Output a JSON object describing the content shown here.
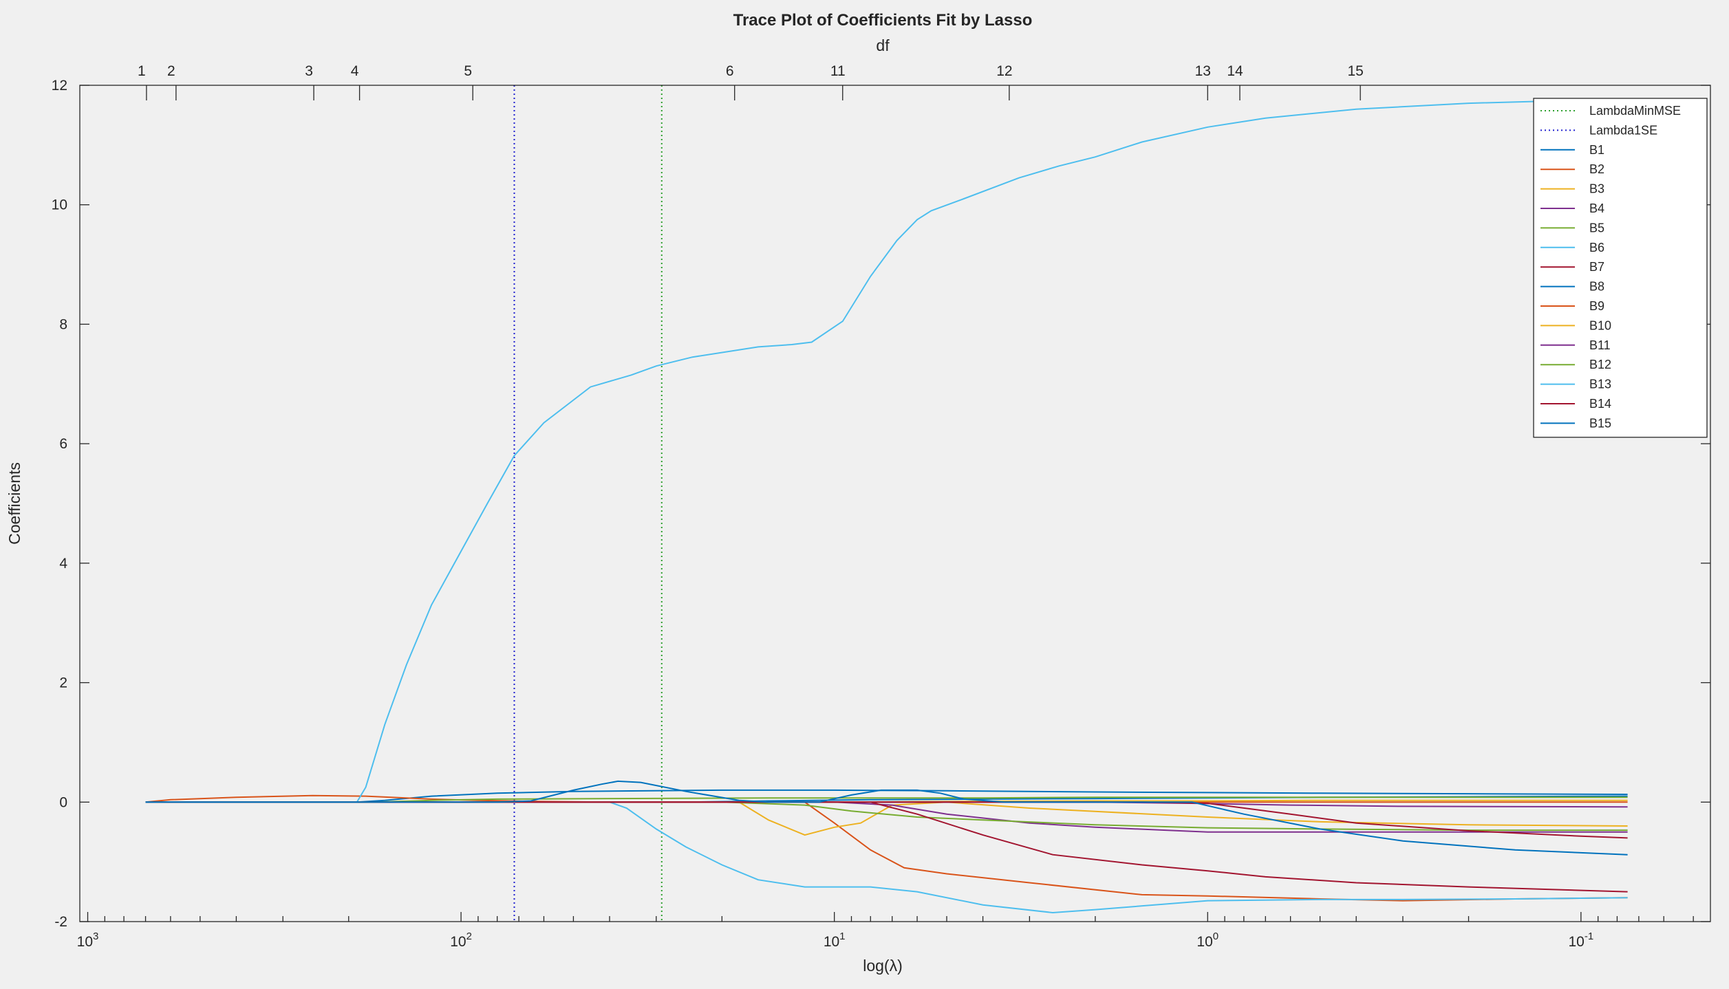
{
  "chart_data": {
    "type": "line",
    "title": "Trace Plot of Coefficients Fit by Lasso",
    "top_axis_label": "df",
    "xlabel": "log(λ)",
    "ylabel": "Coefficients",
    "x_scale": "log",
    "x_direction": "reversed",
    "xlim": [
      1050,
      0.045
    ],
    "ylim": [
      -2,
      12
    ],
    "y_ticks": [
      -2,
      0,
      2,
      4,
      6,
      8,
      10,
      12
    ],
    "x_ticks": [
      {
        "value": 1000,
        "base": "10",
        "exp": "3"
      },
      {
        "value": 100,
        "base": "10",
        "exp": "2"
      },
      {
        "value": 10,
        "base": "10",
        "exp": "1"
      },
      {
        "value": 1,
        "base": "10",
        "exp": "0"
      },
      {
        "value": 0.1,
        "base": "10",
        "exp": "-1"
      }
    ],
    "df_ticks": [
      {
        "x": 696,
        "label": "1"
      },
      {
        "x": 580,
        "label": "2"
      },
      {
        "x": 248,
        "label": "3"
      },
      {
        "x": 187,
        "label": "4"
      },
      {
        "x": 93,
        "label": "5"
      },
      {
        "x": 18.5,
        "label": "6"
      },
      {
        "x": 9.5,
        "label": "11"
      },
      {
        "x": 3.4,
        "label": "12"
      },
      {
        "x": 1.0,
        "label": "13"
      },
      {
        "x": 0.82,
        "label": "14"
      },
      {
        "x": 0.39,
        "label": "15"
      }
    ],
    "vlines": [
      {
        "name": "LambdaMinMSE",
        "x": 29,
        "color": "#2ca02c"
      },
      {
        "name": "Lambda1SE",
        "x": 72,
        "color": "#1f1fd0"
      }
    ],
    "legend_position": "top-right",
    "series": [
      {
        "name": "B1",
        "color": "#0072BD",
        "points": [
          [
            700,
            0
          ],
          [
            200,
            0
          ],
          [
            100,
            0
          ],
          [
            60,
            0
          ],
          [
            40,
            0
          ],
          [
            25,
            0
          ],
          [
            15,
            0.02
          ],
          [
            8,
            0.04
          ],
          [
            4,
            0.05
          ],
          [
            2,
            0.06
          ],
          [
            1,
            0.07
          ],
          [
            0.5,
            0.08
          ],
          [
            0.2,
            0.09
          ],
          [
            0.075,
            0.1
          ]
        ]
      },
      {
        "name": "B2",
        "color": "#D95319",
        "points": [
          [
            700,
            0
          ],
          [
            200,
            0
          ],
          [
            100,
            0
          ],
          [
            50,
            0
          ],
          [
            30,
            0
          ],
          [
            20,
            0
          ],
          [
            12,
            0
          ],
          [
            10,
            -0.35
          ],
          [
            8,
            -0.8
          ],
          [
            6.5,
            -1.1
          ],
          [
            5,
            -1.2
          ],
          [
            3,
            -1.35
          ],
          [
            1.5,
            -1.55
          ],
          [
            1,
            -1.57
          ],
          [
            0.5,
            -1.62
          ],
          [
            0.3,
            -1.65
          ],
          [
            0.15,
            -1.62
          ],
          [
            0.075,
            -1.6
          ]
        ]
      },
      {
        "name": "B3",
        "color": "#EDB120",
        "points": [
          [
            700,
            0
          ],
          [
            100,
            0
          ],
          [
            40,
            0
          ],
          [
            18,
            0
          ],
          [
            15,
            -0.3
          ],
          [
            12,
            -0.55
          ],
          [
            10,
            -0.42
          ],
          [
            8.5,
            -0.35
          ],
          [
            7,
            -0.05
          ],
          [
            5,
            0
          ],
          [
            3,
            -0.1
          ],
          [
            1,
            -0.25
          ],
          [
            0.5,
            -0.33
          ],
          [
            0.2,
            -0.38
          ],
          [
            0.075,
            -0.4
          ]
        ]
      },
      {
        "name": "B4",
        "color": "#7E2F8E",
        "points": [
          [
            700,
            0
          ],
          [
            100,
            0
          ],
          [
            20,
            0
          ],
          [
            10,
            0
          ],
          [
            7,
            -0.05
          ],
          [
            5,
            -0.2
          ],
          [
            3,
            -0.35
          ],
          [
            2,
            -0.42
          ],
          [
            1,
            -0.5
          ],
          [
            0.5,
            -0.5
          ],
          [
            0.2,
            -0.5
          ],
          [
            0.075,
            -0.5
          ]
        ]
      },
      {
        "name": "B5",
        "color": "#77AC30",
        "points": [
          [
            700,
            0
          ],
          [
            100,
            0
          ],
          [
            20,
            0
          ],
          [
            12,
            -0.05
          ],
          [
            9,
            -0.15
          ],
          [
            6,
            -0.25
          ],
          [
            4,
            -0.3
          ],
          [
            2,
            -0.38
          ],
          [
            1,
            -0.43
          ],
          [
            0.5,
            -0.45
          ],
          [
            0.2,
            -0.47
          ],
          [
            0.075,
            -0.47
          ]
        ]
      },
      {
        "name": "B6",
        "color": "#4DBEEE",
        "points": [
          [
            700,
            0
          ],
          [
            200,
            0
          ],
          [
            100,
            0
          ],
          [
            40,
            0
          ],
          [
            36,
            -0.1
          ],
          [
            30,
            -0.45
          ],
          [
            25,
            -0.75
          ],
          [
            20,
            -1.05
          ],
          [
            16,
            -1.3
          ],
          [
            12,
            -1.42
          ],
          [
            10,
            -1.42
          ],
          [
            8,
            -1.42
          ],
          [
            6,
            -1.5
          ],
          [
            4,
            -1.72
          ],
          [
            2.6,
            -1.85
          ],
          [
            2,
            -1.8
          ],
          [
            1,
            -1.65
          ],
          [
            0.5,
            -1.63
          ],
          [
            0.3,
            -1.63
          ],
          [
            0.15,
            -1.62
          ],
          [
            0.075,
            -1.6
          ]
        ]
      },
      {
        "name": "B7",
        "color": "#A2142F",
        "points": [
          [
            700,
            0
          ],
          [
            100,
            0
          ],
          [
            20,
            0
          ],
          [
            8,
            0
          ],
          [
            6,
            -0.2
          ],
          [
            4,
            -0.55
          ],
          [
            2.6,
            -0.88
          ],
          [
            1.5,
            -1.05
          ],
          [
            1,
            -1.15
          ],
          [
            0.7,
            -1.25
          ],
          [
            0.4,
            -1.35
          ],
          [
            0.2,
            -1.42
          ],
          [
            0.075,
            -1.5
          ]
        ]
      },
      {
        "name": "B8",
        "color": "#0072BD",
        "points": [
          [
            700,
            0
          ],
          [
            190,
            0
          ],
          [
            160,
            0.03
          ],
          [
            120,
            0.1
          ],
          [
            80,
            0.15
          ],
          [
            50,
            0.18
          ],
          [
            20,
            0.2
          ],
          [
            10,
            0.2
          ],
          [
            5,
            0.19
          ],
          [
            2,
            0.17
          ],
          [
            1,
            0.16
          ],
          [
            0.5,
            0.15
          ],
          [
            0.2,
            0.14
          ],
          [
            0.075,
            0.13
          ]
        ]
      },
      {
        "name": "B9",
        "color": "#D95319",
        "points": [
          [
            700,
            0
          ],
          [
            600,
            0.04
          ],
          [
            400,
            0.08
          ],
          [
            250,
            0.11
          ],
          [
            180,
            0.1
          ],
          [
            120,
            0.05
          ],
          [
            90,
            0.03
          ],
          [
            60,
            0.01
          ],
          [
            40,
            0
          ],
          [
            20,
            0
          ],
          [
            5,
            0
          ],
          [
            2,
            0
          ],
          [
            0.5,
            0
          ],
          [
            0.075,
            0
          ]
        ]
      },
      {
        "name": "B10",
        "color": "#EDB120",
        "points": [
          [
            700,
            0
          ],
          [
            100,
            0
          ],
          [
            30,
            0
          ],
          [
            10,
            0
          ],
          [
            5,
            0.01
          ],
          [
            2,
            0.02
          ],
          [
            1,
            0.02
          ],
          [
            0.5,
            0.03
          ],
          [
            0.075,
            0.03
          ]
        ]
      },
      {
        "name": "B11",
        "color": "#7E2F8E",
        "points": [
          [
            700,
            0
          ],
          [
            100,
            0
          ],
          [
            10,
            0
          ],
          [
            5,
            0
          ],
          [
            2,
            0
          ],
          [
            1.1,
            -0.02
          ],
          [
            0.6,
            -0.05
          ],
          [
            0.3,
            -0.07
          ],
          [
            0.075,
            -0.08
          ]
        ]
      },
      {
        "name": "B12",
        "color": "#77AC30",
        "points": [
          [
            700,
            0
          ],
          [
            170,
            0
          ],
          [
            120,
            0.03
          ],
          [
            80,
            0.05
          ],
          [
            40,
            0.06
          ],
          [
            15,
            0.07
          ],
          [
            8,
            0.07
          ],
          [
            4,
            0.07
          ],
          [
            2,
            0.08
          ],
          [
            1,
            0.08
          ],
          [
            0.5,
            0.08
          ],
          [
            0.075,
            0.08
          ]
        ]
      },
      {
        "name": "B13",
        "color": "#4DBEEE",
        "points": [
          [
            700,
            0
          ],
          [
            190,
            0
          ],
          [
            180,
            0.25
          ],
          [
            160,
            1.3
          ],
          [
            140,
            2.3
          ],
          [
            120,
            3.3
          ],
          [
            100,
            4.2
          ],
          [
            85,
            5
          ],
          [
            72,
            5.8
          ],
          [
            60,
            6.35
          ],
          [
            45,
            6.95
          ],
          [
            35,
            7.15
          ],
          [
            30,
            7.3
          ],
          [
            24,
            7.45
          ],
          [
            16,
            7.62
          ],
          [
            13,
            7.66
          ],
          [
            11.5,
            7.7
          ],
          [
            9.5,
            8.05
          ],
          [
            8,
            8.8
          ],
          [
            6.8,
            9.4
          ],
          [
            6,
            9.75
          ],
          [
            5.5,
            9.9
          ],
          [
            4.5,
            10.1
          ],
          [
            3.2,
            10.45
          ],
          [
            2.5,
            10.65
          ],
          [
            2,
            10.8
          ],
          [
            1.5,
            11.05
          ],
          [
            1,
            11.3
          ],
          [
            0.7,
            11.45
          ],
          [
            0.4,
            11.6
          ],
          [
            0.2,
            11.7
          ],
          [
            0.1,
            11.75
          ],
          [
            0.075,
            11.77
          ]
        ]
      },
      {
        "name": "B14",
        "color": "#A2142F",
        "points": [
          [
            700,
            0
          ],
          [
            100,
            0
          ],
          [
            10,
            0
          ],
          [
            3,
            0
          ],
          [
            1.5,
            0
          ],
          [
            1,
            -0.02
          ],
          [
            0.6,
            -0.2
          ],
          [
            0.4,
            -0.35
          ],
          [
            0.2,
            -0.48
          ],
          [
            0.1,
            -0.57
          ],
          [
            0.075,
            -0.6
          ]
        ]
      },
      {
        "name": "B15",
        "color": "#0072BD",
        "points": [
          [
            700,
            0
          ],
          [
            80,
            0
          ],
          [
            65,
            0.02
          ],
          [
            50,
            0.2
          ],
          [
            42,
            0.3
          ],
          [
            38,
            0.35
          ],
          [
            33,
            0.33
          ],
          [
            25,
            0.18
          ],
          [
            18,
            0.03
          ],
          [
            15,
            0
          ],
          [
            11,
            0
          ],
          [
            9,
            0.12
          ],
          [
            7.5,
            0.2
          ],
          [
            6,
            0.2
          ],
          [
            5.2,
            0.15
          ],
          [
            4.5,
            0.05
          ],
          [
            3.5,
            0
          ],
          [
            1.5,
            0
          ],
          [
            1.1,
            0
          ],
          [
            0.8,
            -0.2
          ],
          [
            0.5,
            -0.45
          ],
          [
            0.3,
            -0.65
          ],
          [
            0.15,
            -0.8
          ],
          [
            0.075,
            -0.88
          ]
        ]
      }
    ]
  }
}
